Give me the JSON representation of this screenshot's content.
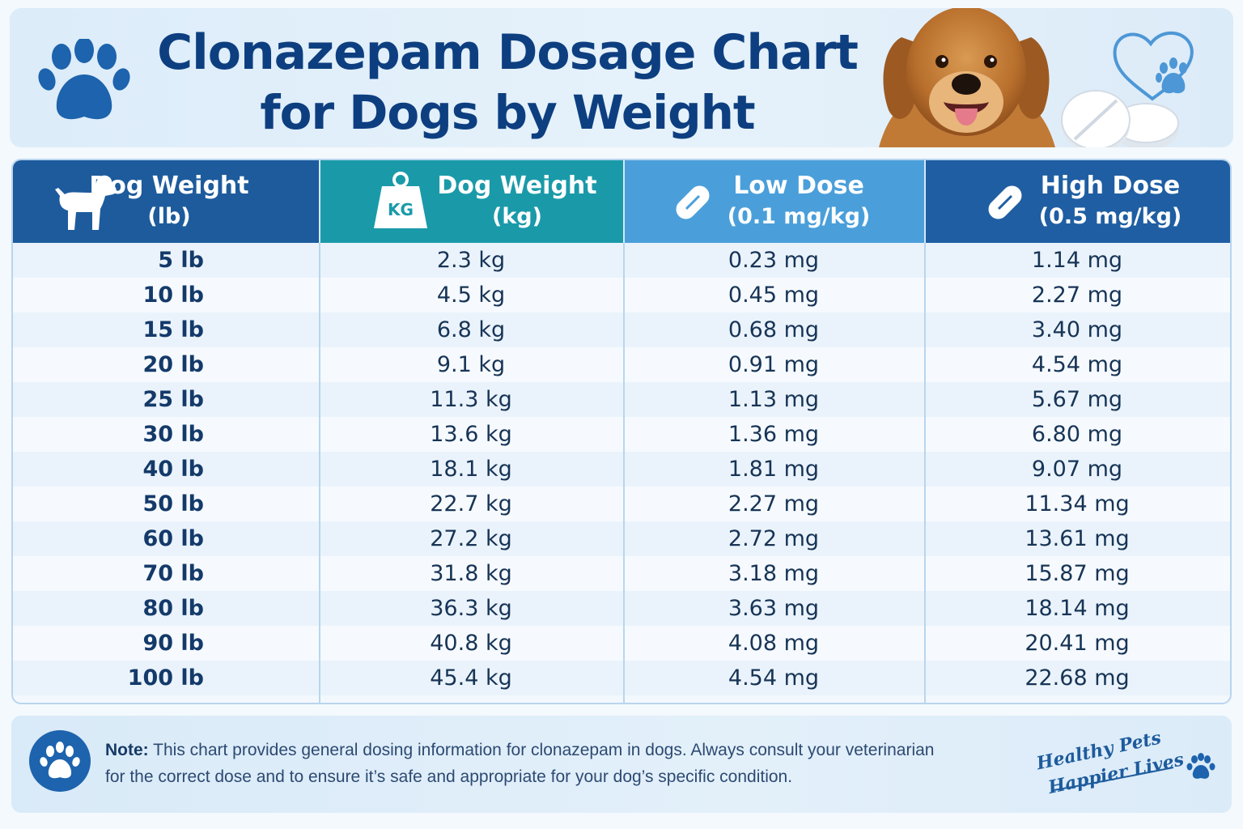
{
  "title": {
    "line1": "Clonazepam Dosage Chart",
    "line2": "for Dogs by Weight"
  },
  "colors": {
    "title": "#0d3f80",
    "header_lb": "#1d5b9d",
    "header_kg": "#1a9aa9",
    "header_low": "#4a9fda",
    "header_high": "#1f5ea2"
  },
  "icons": {
    "header_left": "paw-icon",
    "header_right": "heart-paw-icon",
    "col1": "dog-icon",
    "col2": "kg-weight-icon",
    "col3": "pill-icon",
    "col4": "pill-icon",
    "note": "paw-icon"
  },
  "chart_data": {
    "type": "table",
    "columns": [
      {
        "line1": "Dog Weight",
        "line2": "(lb)"
      },
      {
        "line1": "Dog Weight",
        "line2": "(kg)"
      },
      {
        "line1": "Low Dose",
        "line2": "(0.1 mg/kg)"
      },
      {
        "line1": "High Dose",
        "line2": "(0.5 mg/kg)"
      }
    ],
    "rows": [
      [
        "5 lb",
        "2.3 kg",
        "0.23 mg",
        "1.14 mg"
      ],
      [
        "10 lb",
        "4.5 kg",
        "0.45 mg",
        "2.27 mg"
      ],
      [
        "15 lb",
        "6.8 kg",
        "0.68 mg",
        "3.40 mg"
      ],
      [
        "20 lb",
        "9.1 kg",
        "0.91 mg",
        "4.54 mg"
      ],
      [
        "25 lb",
        "11.3 kg",
        "1.13 mg",
        "5.67 mg"
      ],
      [
        "30 lb",
        "13.6 kg",
        "1.36 mg",
        "6.80 mg"
      ],
      [
        "40 lb",
        "18.1 kg",
        "1.81 mg",
        "9.07 mg"
      ],
      [
        "50 lb",
        "22.7 kg",
        "2.27 mg",
        "11.34 mg"
      ],
      [
        "60 lb",
        "27.2 kg",
        "2.72 mg",
        "13.61 mg"
      ],
      [
        "70 lb",
        "31.8 kg",
        "3.18 mg",
        "15.87 mg"
      ],
      [
        "80 lb",
        "36.3 kg",
        "3.63 mg",
        "18.14 mg"
      ],
      [
        "90 lb",
        "40.8 kg",
        "4.08 mg",
        "20.41 mg"
      ],
      [
        "100 lb",
        "45.4 kg",
        "4.54 mg",
        "22.68 mg"
      ]
    ]
  },
  "kg_icon_label": "KG",
  "note": {
    "label": "Note:",
    "line1": "This chart provides general dosing information for clonazepam in dogs. Always consult your veterinarian",
    "line2": "for the correct dose and to ensure it’s safe and appropriate for your dog’s specific condition."
  },
  "slogan": {
    "line1": "Healthy Pets",
    "line2": "Happier Lives"
  }
}
